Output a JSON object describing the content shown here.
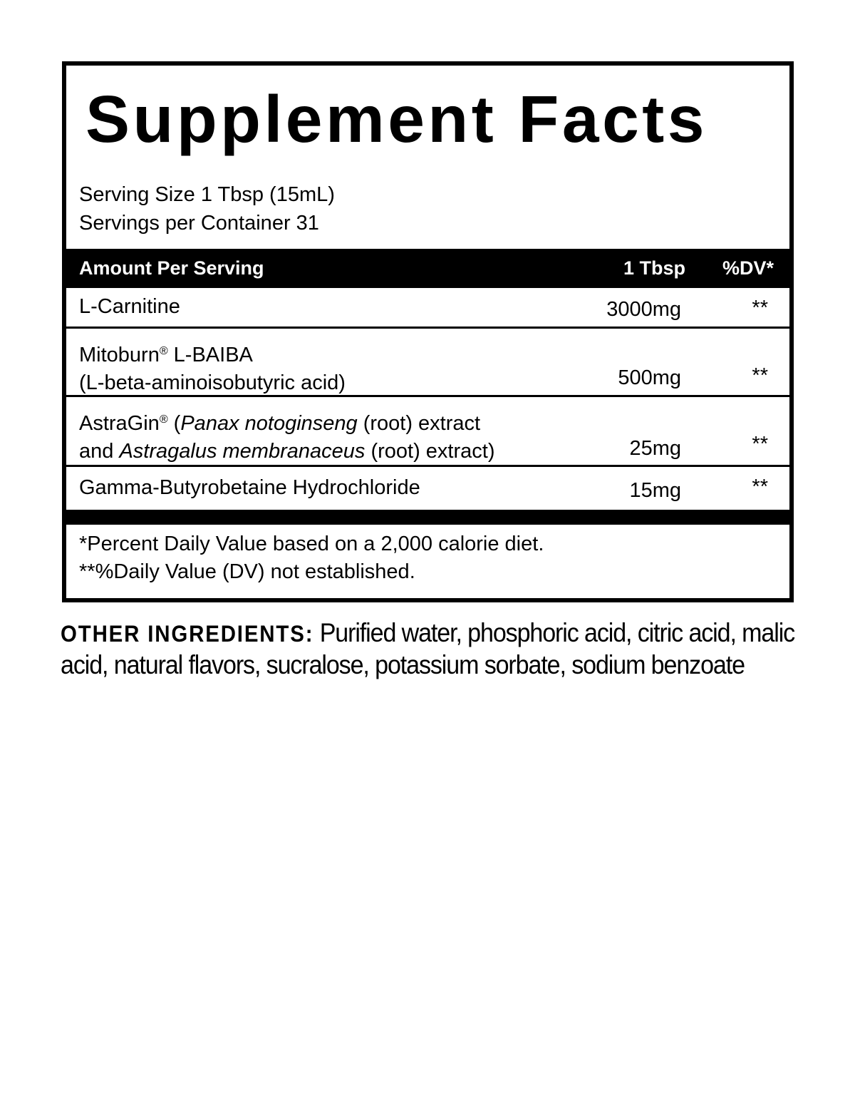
{
  "title": "Supplement Facts",
  "serving_size": "Serving Size 1 Tbsp (15mL)",
  "servings_per_container": "Servings per Container 31",
  "header": {
    "amount": "Amount Per Serving",
    "unit": "1 Tbsp",
    "dv": "%DV*"
  },
  "rows": [
    {
      "line1": "L-Carnitine",
      "amount": "3000mg",
      "dv": "**"
    },
    {
      "line1_a": "Mitoburn",
      "reg": "®",
      "line1_b": " L-BAIBA",
      "line2": "(L-beta-aminoisobutyric acid)",
      "amount": "500mg",
      "dv": "**"
    },
    {
      "line1_a": "AstraGin",
      "reg": "®",
      "line1_b": " (",
      "line1_i": "Panax notoginseng",
      "line1_c": " (root) extract",
      "line2_a": "and ",
      "line2_i": "Astragalus membranaceus",
      "line2_b": " (root) extract)",
      "amount": "25mg",
      "dv": "**"
    },
    {
      "line1": "Gamma-Butyrobetaine Hydrochloride",
      "amount": "15mg",
      "dv": "**"
    }
  ],
  "footnotes": [
    "*Percent Daily Value based on a 2,000 calorie diet.",
    "**%Daily Value (DV) not established."
  ],
  "other_ingredients": {
    "label": "OTHER INGREDIENTS:",
    "text": " Purified water, phosphoric acid, citric acid, malic acid, natural flavors, sucralose, potassium sorbate, sodium benzoate"
  }
}
